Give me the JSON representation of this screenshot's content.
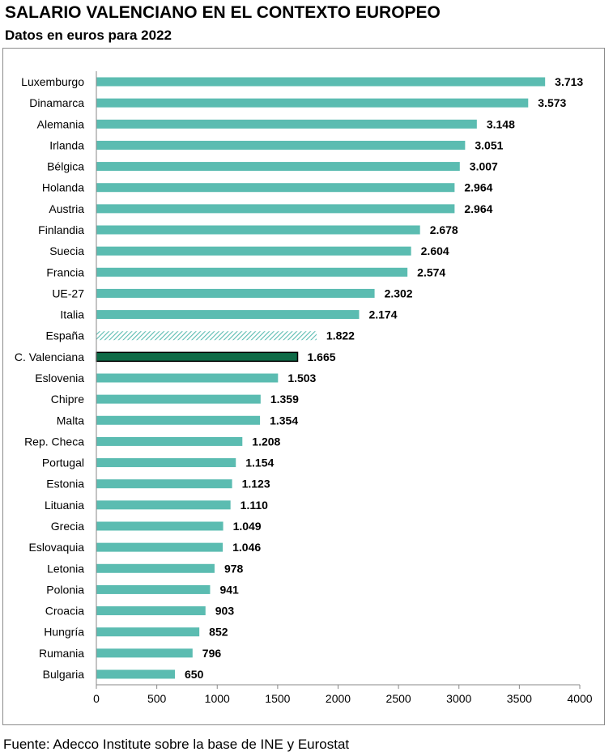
{
  "title": "SALARIO VALENCIANO EN EL CONTEXTO EUROPEO",
  "subtitle": "Datos en euros para 2022",
  "source": "Fuente: Adecco Institute sobre la base de INE y Eurostat",
  "chart_data": {
    "type": "bar",
    "orientation": "horizontal",
    "categories": [
      "Luxemburgo",
      "Dinamarca",
      "Alemania",
      "Irlanda",
      "Bélgica",
      "Holanda",
      "Austria",
      "Finlandia",
      "Suecia",
      "Francia",
      "UE-27",
      "Italia",
      "España",
      "C. Valenciana",
      "Eslovenia",
      "Chipre",
      "Malta",
      "Rep. Checa",
      "Portugal",
      "Estonia",
      "Lituania",
      "Grecia",
      "Eslovaquia",
      "Letonia",
      "Polonia",
      "Croacia",
      "Hungría",
      "Rumania",
      "Bulgaria"
    ],
    "values": [
      3713,
      3573,
      3148,
      3051,
      3007,
      2964,
      2964,
      2678,
      2604,
      2574,
      2302,
      2174,
      1822,
      1665,
      1503,
      1359,
      1354,
      1208,
      1154,
      1123,
      1110,
      1049,
      1046,
      978,
      941,
      903,
      852,
      796,
      650
    ],
    "value_labels": [
      "3.713",
      "3.573",
      "3.148",
      "3.051",
      "3.007",
      "2.964",
      "2.964",
      "2.678",
      "2.604",
      "2.574",
      "2.302",
      "2.174",
      "1.822",
      "1.665",
      "1.503",
      "1.359",
      "1.354",
      "1.208",
      "1.154",
      "1.123",
      "1.110",
      "1.049",
      "1.046",
      "978",
      "941",
      "903",
      "852",
      "796",
      "650"
    ],
    "xlim": [
      0,
      4000
    ],
    "xticks": [
      0,
      500,
      1000,
      1500,
      2000,
      2500,
      3000,
      3500,
      4000
    ],
    "grid": false,
    "colors": {
      "default": "#5bbcb1",
      "España": "hatched #5bbcb1",
      "C. Valenciana": "#0e6b47"
    }
  }
}
